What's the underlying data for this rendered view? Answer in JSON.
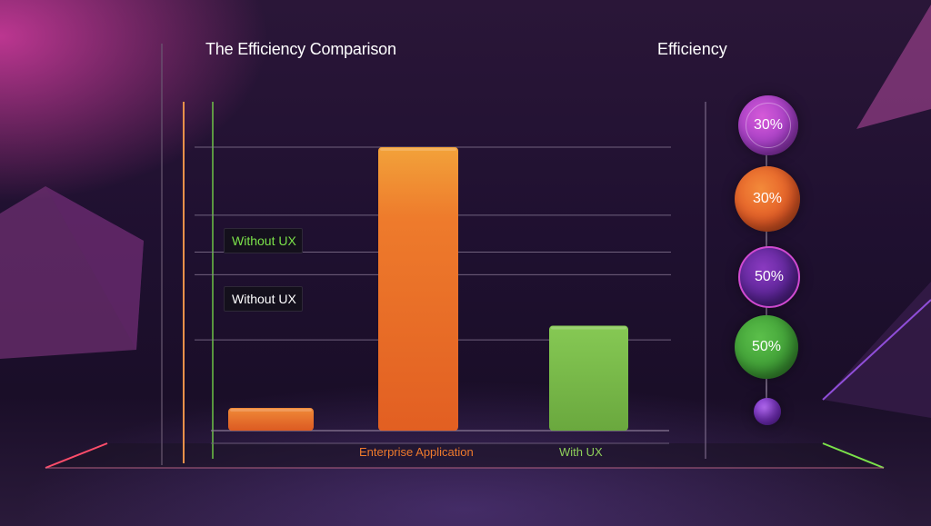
{
  "title": "The Efficiency Comparison",
  "legend": {
    "items": [
      "Without UX",
      "Without UX"
    ],
    "colors": [
      "#7be24a",
      "#ffffff"
    ]
  },
  "right_panel": {
    "title": "Efficiency",
    "badges": [
      {
        "label": "30%",
        "color": "#b43fc9"
      },
      {
        "label": "30%",
        "color": "#e85c2a"
      },
      {
        "label": "50%",
        "color": "#6a2ea8"
      },
      {
        "label": "50%",
        "color": "#3f9e3a"
      },
      {
        "label": "",
        "color": "#8a3ad0"
      }
    ]
  },
  "chart_data": {
    "type": "bar",
    "title": "The Efficiency Comparison",
    "categories": [
      "",
      "Enterprise Application",
      "With UX"
    ],
    "category_colors": [
      "#e85a26",
      "#ee6e25",
      "#7ec04a"
    ],
    "values": [
      8,
      100,
      37
    ],
    "ylim": [
      0,
      100
    ],
    "grid": true,
    "legend": [
      "Without UX",
      "Without UX"
    ],
    "legend_position": "left"
  }
}
